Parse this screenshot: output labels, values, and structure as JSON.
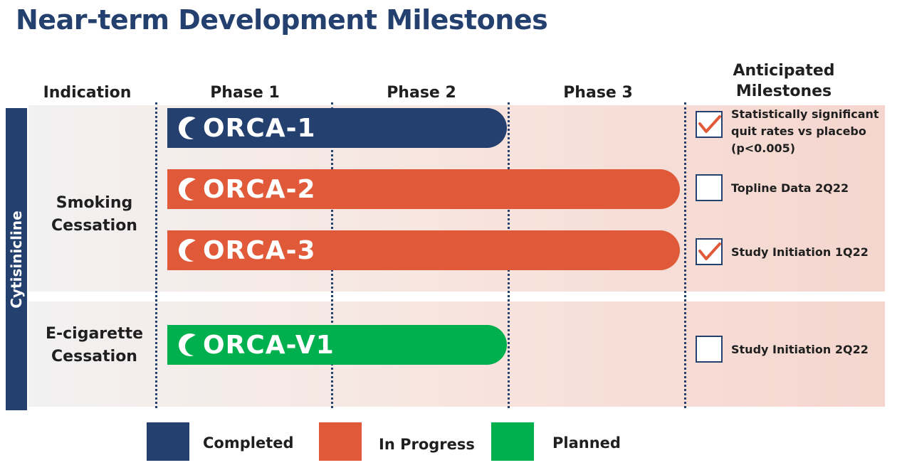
{
  "title": "Near-term Development Milestones",
  "headers": {
    "indication": "Indication",
    "phase1": "Phase 1",
    "phase2": "Phase 2",
    "phase3": "Phase 3",
    "milestones_line1": "Anticipated",
    "milestones_line2": "Milestones"
  },
  "drug": "Cytisinicline",
  "indications": [
    {
      "line1": "Smoking",
      "line2": "Cessation"
    },
    {
      "line1": "E-cigarette",
      "line2": "Cessation"
    }
  ],
  "trials": [
    {
      "label": "ORCA-1",
      "status": "Completed",
      "color": "#24406f",
      "milestone": [
        "Statistically significant",
        "quit rates vs placebo",
        "(p<0.005)"
      ],
      "checked": true
    },
    {
      "label": "ORCA-2",
      "status": "In Progress",
      "color": "#e05a3a",
      "milestone": [
        "Topline Data 2Q22"
      ],
      "checked": false
    },
    {
      "label": "ORCA-3",
      "status": "In Progress",
      "color": "#e05a3a",
      "milestone": [
        "Study Initiation 1Q22"
      ],
      "checked": true
    },
    {
      "label": "ORCA-V1",
      "status": "Planned",
      "color": "#00b04f",
      "milestone": [
        "Study Initiation 2Q22"
      ],
      "checked": false
    }
  ],
  "legend": [
    {
      "label": "Completed",
      "color": "#24406f"
    },
    {
      "label": "In Progress",
      "color": "#e05a3a"
    },
    {
      "label": "Planned",
      "color": "#00b04f"
    }
  ],
  "icons": {
    "check": "check-mark-icon",
    "logo": "orca-leaf-logo-icon"
  }
}
